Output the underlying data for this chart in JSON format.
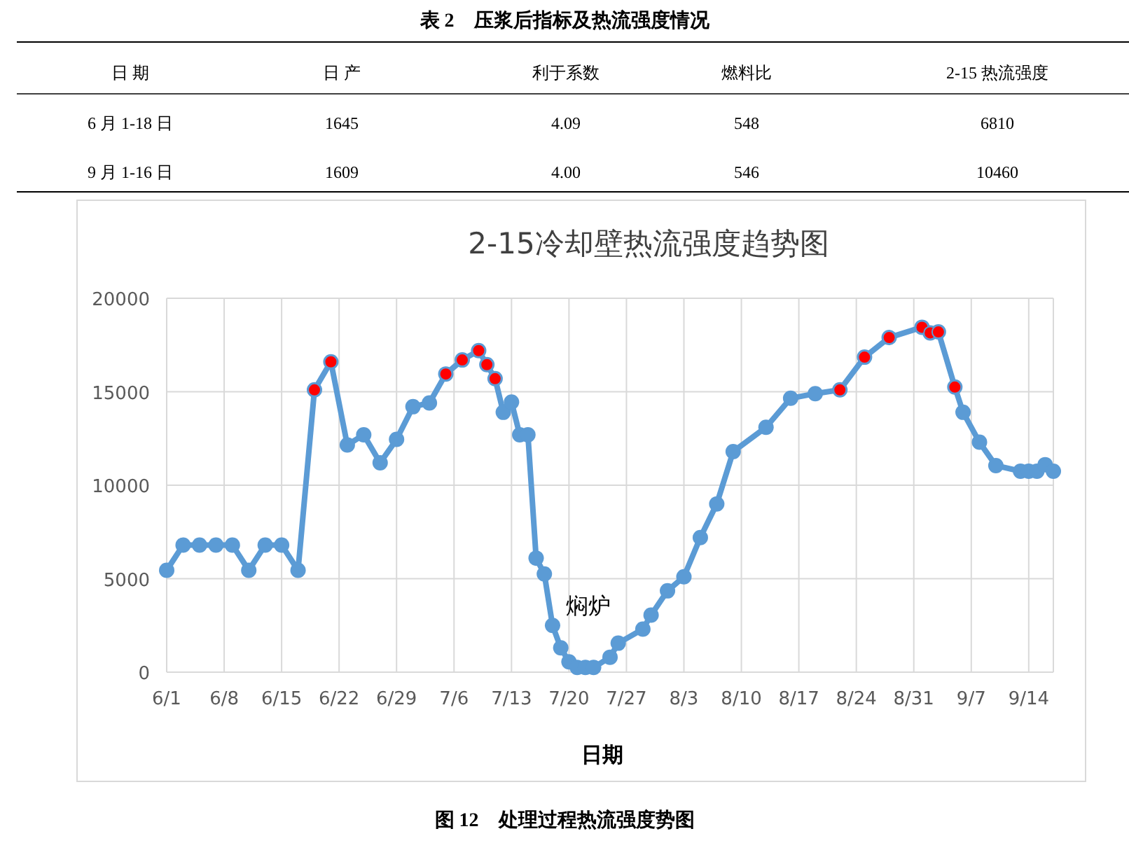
{
  "chart_data": [
    {
      "type": "other",
      "title": "表 2　压浆后指标及热流强度情况",
      "categories": [
        "日  期",
        "日  产",
        "利于系数",
        "燃料比",
        "2-15 热流强度"
      ],
      "annotations": [
        "6 月 1-18 日",
        "1645",
        "4.09",
        "548",
        "6810",
        "9 月 1-16 日",
        "1609",
        "4.00",
        "546",
        "10460"
      ]
    },
    {
      "type": "line",
      "title": "2-15冷却壁热流强度趋势图",
      "xlabel": "日期",
      "grid": true,
      "marker": "circle",
      "line_style": "solid",
      "xlim": [
        "--06-01",
        "--09-17"
      ],
      "xticks": [
        {
          "value": "--06-01",
          "label": "6/1"
        },
        {
          "value": "--06-08",
          "label": "6/8"
        },
        {
          "value": "--06-15",
          "label": "6/15"
        },
        {
          "value": "--06-22",
          "label": "6/22"
        },
        {
          "value": "--06-29",
          "label": "6/29"
        },
        {
          "value": "--07-06",
          "label": "7/6"
        },
        {
          "value": "--07-13",
          "label": "7/13"
        },
        {
          "value": "--07-20",
          "label": "7/20"
        },
        {
          "value": "--07-27",
          "label": "7/27"
        },
        {
          "value": "--08-03",
          "label": "8/3"
        },
        {
          "value": "--08-10",
          "label": "8/10"
        },
        {
          "value": "--08-17",
          "label": "8/17"
        },
        {
          "value": "--08-24",
          "label": "8/24"
        },
        {
          "value": "--08-31",
          "label": "8/31"
        },
        {
          "value": "--09-07",
          "label": "9/7"
        },
        {
          "value": "--09-14",
          "label": "9/14"
        }
      ],
      "ylim": [
        0,
        20000
      ],
      "yticks": [
        0,
        5000,
        10000,
        15000,
        20000
      ],
      "series": [
        {
          "type": "line",
          "color": "#5b9bd5",
          "x": [
            "--06-01",
            "--06-03",
            "--06-05",
            "--06-07",
            "--06-09",
            "--06-11",
            "--06-13",
            "--06-15",
            "--06-17",
            "--06-19",
            "--06-21",
            "--06-23",
            "--06-25",
            "--06-27",
            "--06-29",
            "--07-01",
            "--07-03",
            "--07-05",
            "--07-07",
            "--07-09",
            "--07-10",
            "--07-11",
            "--07-12",
            "--07-13",
            "--07-14",
            "--07-15",
            "--07-16",
            "--07-17",
            "--07-18",
            "--07-19",
            "--07-20",
            "--07-21",
            "--07-22",
            "--07-23",
            "--07-25",
            "--07-26",
            "--07-29",
            "--07-30",
            "--08-01",
            "--08-03",
            "--08-05",
            "--08-07",
            "--08-09",
            "--08-13",
            "--08-16",
            "--08-19",
            "--08-22",
            "--08-25",
            "--08-28",
            "--09-01",
            "--09-02",
            "--09-03",
            "--09-05",
            "--09-06",
            "--09-08",
            "--09-10",
            "--09-13",
            "--09-14",
            "--09-15",
            "--09-16",
            "--09-17"
          ],
          "values": [
            5450,
            6800,
            6800,
            6800,
            6800,
            5450,
            6800,
            6800,
            5450,
            15100,
            16600,
            12150,
            12700,
            11200,
            12450,
            14200,
            14400,
            15950,
            16700,
            17200,
            16450,
            15700,
            13900,
            14450,
            12700,
            12700,
            6100,
            5250,
            2500,
            1300,
            550,
            250,
            250,
            250,
            800,
            1550,
            2300,
            3050,
            4350,
            5100,
            7200,
            9000,
            11800,
            13100,
            14650,
            14900,
            15100,
            16850,
            17900,
            18450,
            18150,
            18200,
            15250,
            13900,
            12300,
            11050,
            10750,
            10750,
            10750,
            11100,
            10750
          ]
        },
        {
          "type": "scatter",
          "color": "#ff0000",
          "x": [
            "--06-19",
            "--06-21",
            "--07-05",
            "--07-07",
            "--07-09",
            "--07-10",
            "--07-11",
            "--08-22",
            "--08-25",
            "--08-28",
            "--09-01",
            "--09-02",
            "--09-03",
            "--09-05"
          ],
          "values": [
            15100,
            16600,
            15950,
            16700,
            17200,
            16450,
            15700,
            15100,
            16850,
            17900,
            18450,
            18150,
            18200,
            15250
          ]
        }
      ],
      "annotations": [
        "焖炉",
        "图 12　处理过程热流强度势图"
      ]
    }
  ]
}
